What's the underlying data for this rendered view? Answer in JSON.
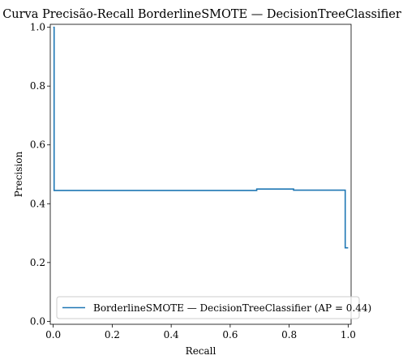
{
  "chart_data": {
    "type": "line",
    "title": "Curva Precisão-Recall BorderlineSMOTE — DecisionTreeClassifier",
    "xlabel": "Recall",
    "ylabel": "Precision",
    "xlim": [
      -0.01,
      1.01
    ],
    "ylim": [
      -0.01,
      1.01
    ],
    "x_ticks": [
      0.0,
      0.2,
      0.4,
      0.6,
      0.8,
      1.0
    ],
    "x_tick_labels": [
      "0.0",
      "0.2",
      "0.4",
      "0.6",
      "0.8",
      "1.0"
    ],
    "y_ticks": [
      0.0,
      0.2,
      0.4,
      0.6,
      0.8,
      1.0
    ],
    "y_tick_labels": [
      "0.0",
      "0.2",
      "0.4",
      "0.6",
      "0.8",
      "1.0"
    ],
    "grid": false,
    "legend_position": "bottom-right",
    "series": [
      {
        "name": "BorderlineSMOTE — DecisionTreeClassifier (AP = 0.44)",
        "color": "#1f77b4",
        "drawstyle": "steps-post",
        "x": [
          0.0,
          0.003,
          0.003,
          0.69,
          0.69,
          0.815,
          0.815,
          0.99,
          0.99,
          1.0
        ],
        "y": [
          1.0,
          1.0,
          0.445,
          0.445,
          0.45,
          0.45,
          0.446,
          0.446,
          0.25,
          0.25
        ]
      }
    ]
  }
}
